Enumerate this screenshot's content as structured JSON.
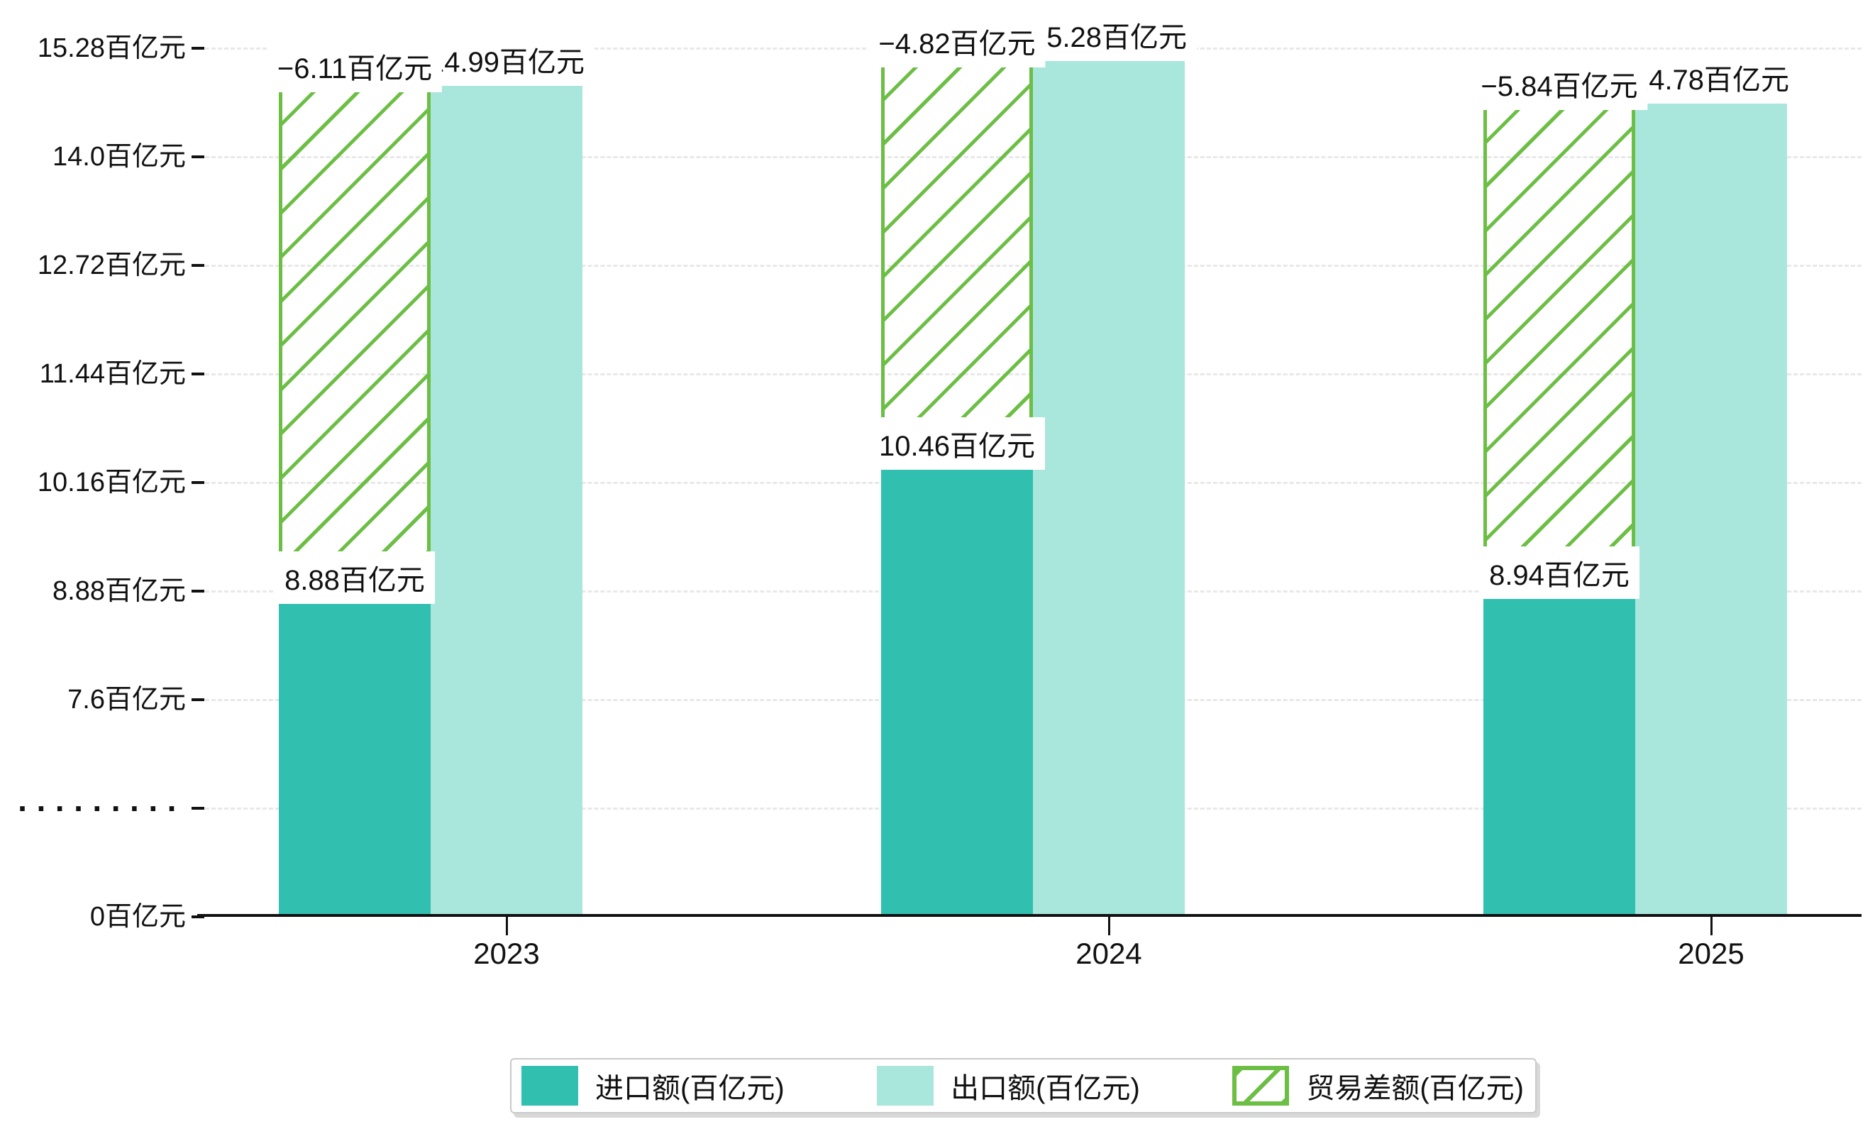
{
  "chart_data": {
    "type": "bar",
    "title": "",
    "xlabel": "",
    "ylabel": "",
    "unit": "百亿元",
    "categories": [
      "2023",
      "2024",
      "2025"
    ],
    "series": [
      {
        "name": "进口额(百亿元)",
        "role": "import",
        "values": [
          8.88,
          10.46,
          8.94
        ],
        "labels": [
          "8.88百亿元",
          "10.46百亿元",
          "8.94百亿元"
        ],
        "color": "#31bfb0"
      },
      {
        "name": "出口额(百亿元)",
        "role": "export",
        "values": [
          14.99,
          15.28,
          14.78
        ],
        "labels": [
          "14.99百亿元",
          "15.28百亿元",
          "14.78百亿元"
        ],
        "color": "#a9e6dc"
      },
      {
        "name": "贸易差额(百亿元)",
        "role": "trade-diff",
        "style": "hatched",
        "values": [
          -6.11,
          -4.82,
          -5.84
        ],
        "labels": [
          "−6.11百亿元",
          "−4.82百亿元",
          "−5.84百亿元"
        ],
        "color": "#6cbe45"
      }
    ],
    "y_axis": {
      "tick_labels": [
        "15.28百亿元",
        "14.0百亿元",
        "12.72百亿元",
        "11.44百亿元",
        "10.16百亿元",
        "8.88百亿元",
        "7.6百亿元",
        "·········",
        "0百亿元"
      ],
      "tick_values": [
        15.28,
        14.0,
        12.72,
        11.44,
        10.16,
        8.88,
        7.6,
        null,
        0
      ],
      "axis_break": true,
      "range_shown": [
        0,
        15.28
      ]
    },
    "grid": true,
    "legend_position": "bottom",
    "colors": {
      "import": "#31bfb0",
      "export": "#a9e6dc",
      "diff_green": "#6cbe45",
      "gridline": "#e8e8e8",
      "axis": "#111111",
      "label_bg": "#ffffff"
    }
  },
  "legend": {
    "items": [
      {
        "label": "进口额(百亿元)",
        "swatch": "import-solid-teal"
      },
      {
        "label": "出口额(百亿元)",
        "swatch": "export-solid-light-teal"
      },
      {
        "label": "贸易差额(百亿元)",
        "swatch": "green-hatched"
      }
    ]
  }
}
